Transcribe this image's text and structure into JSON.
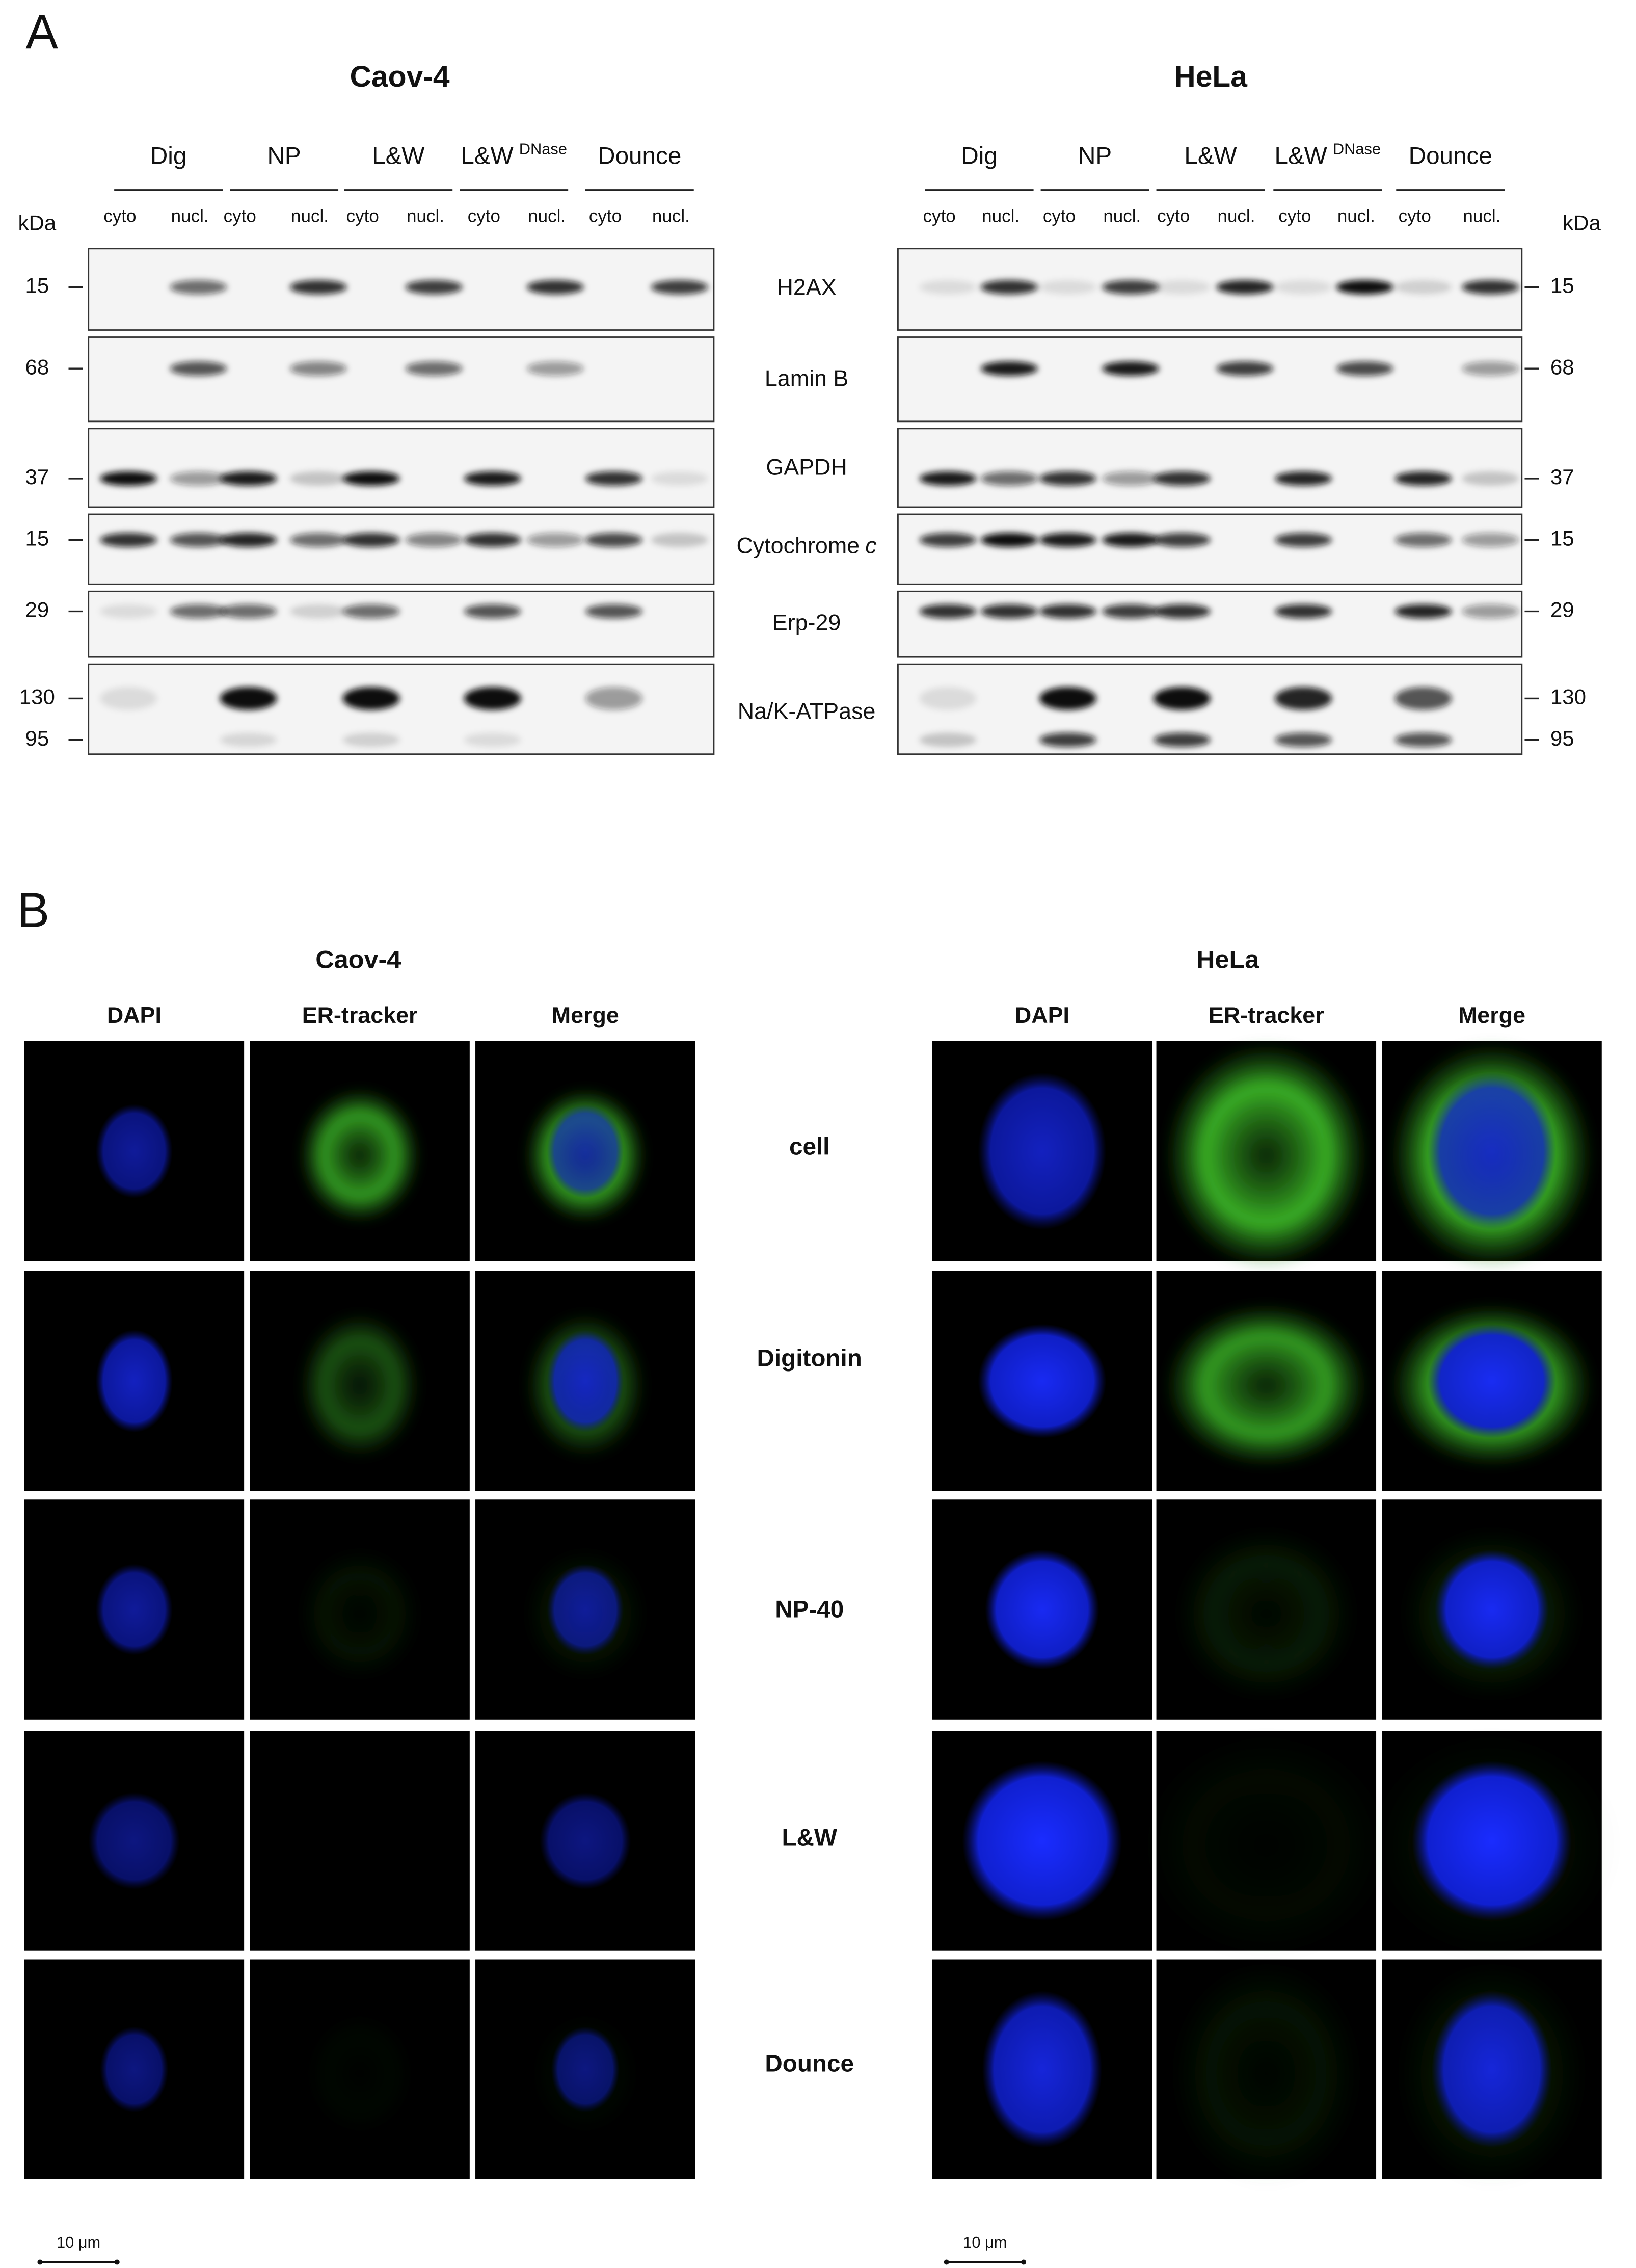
{
  "panel_a": {
    "label": "A",
    "kda_label": "kDa",
    "fraction_labels": [
      "cyto",
      "nucl."
    ],
    "treatments": [
      {
        "name": "Dig"
      },
      {
        "name": "NP"
      },
      {
        "name": "L&W"
      },
      {
        "name": "L&W",
        "superscript": "DNase"
      },
      {
        "name": "Dounce"
      }
    ],
    "proteins": [
      {
        "name": "H2AX"
      },
      {
        "name": "Lamin B"
      },
      {
        "name": "GAPDH"
      },
      {
        "name": "Cytochrome",
        "italic": "c"
      },
      {
        "name": "Erp-29"
      },
      {
        "name": "Na/K-ATPase"
      }
    ],
    "blots": [
      {
        "cell_line": "Caov-4",
        "markers": [
          [
            15
          ],
          [
            68
          ],
          [
            37
          ],
          [
            15
          ],
          [
            29
          ],
          [
            130,
            95
          ]
        ]
      },
      {
        "cell_line": "HeLa",
        "markers": [
          [
            15
          ],
          [
            68
          ],
          [
            37
          ],
          [
            15
          ],
          [
            29
          ],
          [
            130,
            95
          ]
        ]
      }
    ]
  },
  "panel_b": {
    "label": "B",
    "cell_lines": [
      "Caov-4",
      "HeLa"
    ],
    "channels": [
      "DAPI",
      "ER-tracker",
      "Merge"
    ],
    "conditions": [
      "cell",
      "Digitonin",
      "NP-40",
      "L&W",
      "Dounce"
    ],
    "scale_bar": "10 μm"
  }
}
